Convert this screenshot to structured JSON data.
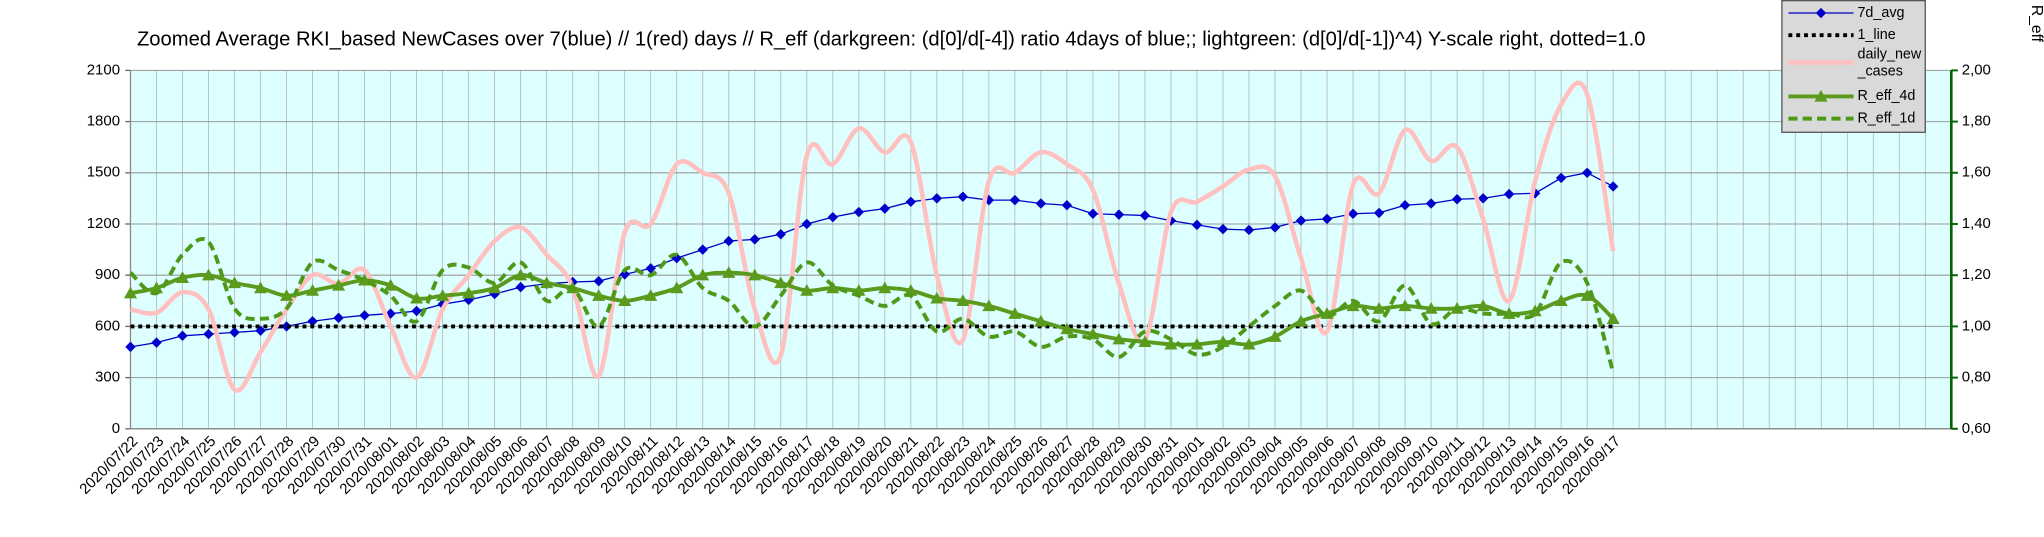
{
  "chart_data": {
    "type": "line",
    "title": "Zoomed Average RKI_based NewCases over 7(blue) // 1(red) days //  R_eff (darkgreen: (d[0]/d[-4]) ratio 4days of blue;; lightgreen: (d[0]/d[-1])^4) Y-scale right, dotted=1.0",
    "y2_label": "R_eff",
    "categories": [
      "2020/07/22",
      "2020/07/23",
      "2020/07/24",
      "2020/07/25",
      "2020/07/26",
      "2020/07/27",
      "2020/07/28",
      "2020/07/29",
      "2020/07/30",
      "2020/07/31",
      "2020/08/01",
      "2020/08/02",
      "2020/08/03",
      "2020/08/04",
      "2020/08/05",
      "2020/08/06",
      "2020/08/07",
      "2020/08/08",
      "2020/08/09",
      "2020/08/10",
      "2020/08/11",
      "2020/08/12",
      "2020/08/13",
      "2020/08/14",
      "2020/08/15",
      "2020/08/16",
      "2020/08/17",
      "2020/08/18",
      "2020/08/19",
      "2020/08/20",
      "2020/08/21",
      "2020/08/22",
      "2020/08/23",
      "2020/08/24",
      "2020/08/25",
      "2020/08/26",
      "2020/08/27",
      "2020/08/28",
      "2020/08/29",
      "2020/08/30",
      "2020/08/31",
      "2020/09/01",
      "2020/09/02",
      "2020/09/03",
      "2020/09/04",
      "2020/09/05",
      "2020/09/06",
      "2020/09/07",
      "2020/09/08",
      "2020/09/09",
      "2020/09/10",
      "2020/09/11",
      "2020/09/12",
      "2020/09/13",
      "2020/09/14",
      "2020/09/15",
      "2020/09/16",
      "2020/09/17",
      null,
      null,
      null,
      null,
      null,
      null,
      null,
      null,
      null,
      null,
      null,
      null,
      null
    ],
    "ylim": [
      0,
      2100
    ],
    "yticks": [
      0,
      300,
      600,
      900,
      1200,
      1500,
      1800,
      2100
    ],
    "y2lim": [
      0.6,
      2.0
    ],
    "y2ticks": [
      {
        "value": 0.6,
        "label": "0,60"
      },
      {
        "value": 0.8,
        "label": "0,80"
      },
      {
        "value": 1.0,
        "label": "1,00"
      },
      {
        "value": 1.2,
        "label": "1,20"
      },
      {
        "value": 1.4,
        "label": "1,40"
      },
      {
        "value": 1.6,
        "label": "1,60"
      },
      {
        "value": 1.8,
        "label": "1,80"
      },
      {
        "value": 2.0,
        "label": "2,00"
      }
    ],
    "grid": true,
    "legend": "upper right",
    "series": [
      {
        "name": "7d_avg",
        "color": "#0000cc",
        "marker": "diamond",
        "values": [
          480,
          505,
          545,
          555,
          565,
          575,
          600,
          630,
          650,
          665,
          675,
          690,
          730,
          755,
          790,
          830,
          850,
          860,
          865,
          905,
          940,
          1000,
          1050,
          1100,
          1110,
          1140,
          1200,
          1240,
          1270,
          1290,
          1330,
          1350,
          1360,
          1340,
          1340,
          1320,
          1310,
          1260,
          1255,
          1250,
          1220,
          1195,
          1170,
          1165,
          1180,
          1220,
          1230,
          1260,
          1265,
          1310,
          1320,
          1345,
          1350,
          1375,
          1380,
          1470,
          1500,
          1420,
          null,
          null,
          null,
          null,
          null,
          null,
          null,
          null,
          null,
          null,
          null,
          null,
          null
        ]
      },
      {
        "name": "1_line",
        "color": "#000000",
        "dash": "dotted",
        "axis": "y2",
        "values": [
          1,
          1,
          1,
          1,
          1,
          1,
          1,
          1,
          1,
          1,
          1,
          1,
          1,
          1,
          1,
          1,
          1,
          1,
          1,
          1,
          1,
          1,
          1,
          1,
          1,
          1,
          1,
          1,
          1,
          1,
          1,
          1,
          1,
          1,
          1,
          1,
          1,
          1,
          1,
          1,
          1,
          1,
          1,
          1,
          1,
          1,
          1,
          1,
          1,
          1,
          1,
          1,
          1,
          1,
          1,
          1,
          1,
          1,
          null,
          null,
          null,
          null,
          null,
          null,
          null,
          null,
          null,
          null,
          null,
          null,
          null
        ]
      },
      {
        "name": "daily_new_cases",
        "color": "#ffc0c0",
        "smooth": true,
        "values": [
          700,
          680,
          800,
          700,
          230,
          450,
          700,
          900,
          850,
          930,
          600,
          300,
          700,
          900,
          1100,
          1180,
          1020,
          830,
          310,
          1150,
          1200,
          1550,
          1500,
          1380,
          700,
          430,
          1600,
          1550,
          1760,
          1620,
          1680,
          900,
          520,
          1450,
          1500,
          1620,
          1550,
          1400,
          850,
          520,
          1270,
          1330,
          1420,
          1520,
          1480,
          1000,
          570,
          1430,
          1380,
          1750,
          1570,
          1650,
          1230,
          750,
          1450,
          1900,
          1960,
          1040,
          null,
          null,
          null,
          null,
          null,
          null,
          null,
          null,
          null,
          null,
          null,
          null,
          null
        ]
      },
      {
        "name": "R_eff_4d",
        "color": "#5a9a1c",
        "marker": "triangle",
        "smooth": true,
        "axis": "y2",
        "values": [
          1.13,
          1.15,
          1.19,
          1.2,
          1.17,
          1.15,
          1.12,
          1.14,
          1.16,
          1.18,
          1.16,
          1.11,
          1.12,
          1.13,
          1.15,
          1.2,
          1.17,
          1.15,
          1.12,
          1.1,
          1.12,
          1.15,
          1.2,
          1.21,
          1.2,
          1.17,
          1.14,
          1.15,
          1.14,
          1.15,
          1.14,
          1.11,
          1.1,
          1.08,
          1.05,
          1.02,
          0.99,
          0.97,
          0.95,
          0.94,
          0.93,
          0.93,
          0.94,
          0.93,
          0.96,
          1.02,
          1.05,
          1.08,
          1.07,
          1.08,
          1.07,
          1.07,
          1.08,
          1.05,
          1.06,
          1.1,
          1.12,
          1.03,
          null,
          null,
          null,
          null,
          null,
          null,
          null,
          null,
          null,
          null,
          null,
          null,
          null
        ]
      },
      {
        "name": "R_eff_1d",
        "color": "#4e9a18",
        "dash": "dashed",
        "smooth": true,
        "axis": "y2",
        "values": [
          1.21,
          1.13,
          1.28,
          1.33,
          1.07,
          1.03,
          1.07,
          1.25,
          1.22,
          1.18,
          1.12,
          1.02,
          1.22,
          1.23,
          1.17,
          1.25,
          1.1,
          1.15,
          1.0,
          1.22,
          1.2,
          1.28,
          1.15,
          1.1,
          1.0,
          1.12,
          1.25,
          1.16,
          1.12,
          1.08,
          1.12,
          0.98,
          1.03,
          0.96,
          0.98,
          0.92,
          0.96,
          0.95,
          0.88,
          0.98,
          0.95,
          0.89,
          0.92,
          1.0,
          1.08,
          1.14,
          1.04,
          1.1,
          1.02,
          1.16,
          1.01,
          1.07,
          1.05,
          1.05,
          1.05,
          1.25,
          1.17,
          0.82,
          null,
          null,
          null,
          null,
          null,
          null,
          null,
          null,
          null,
          null,
          null,
          null,
          null
        ]
      }
    ]
  }
}
